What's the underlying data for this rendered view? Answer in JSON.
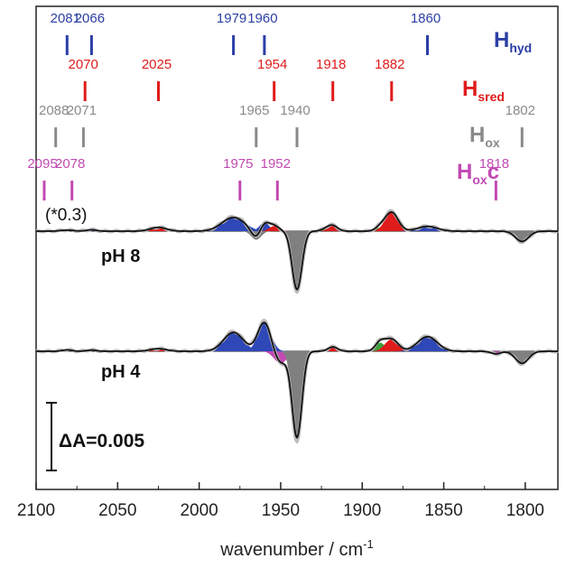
{
  "chart_data": {
    "type": "line",
    "xlabel_main": "wavenumber / cm",
    "xlabel_sup": "-1",
    "xlim": [
      2100,
      1780
    ],
    "xticks": [
      2100,
      2050,
      2000,
      1950,
      1900,
      1850,
      1800
    ],
    "state_labels": [
      {
        "main": "H",
        "sub": "hyd",
        "suffix": "",
        "color": "#2b3ea6",
        "peaks": [
          2081,
          2066,
          1979,
          1960,
          1860
        ]
      },
      {
        "main": "H",
        "sub": "sred",
        "suffix": "",
        "color": "#e01b1b",
        "peaks": [
          2070,
          2025,
          1954,
          1918,
          1882
        ]
      },
      {
        "main": "H",
        "sub": "ox",
        "suffix": "",
        "color": "#8a8a8a",
        "peaks": [
          2088,
          2071,
          1965,
          1940,
          1802
        ]
      },
      {
        "main": "H",
        "sub": "ox",
        "suffix": "c",
        "color": "#c24ab3",
        "peaks": [
          2095,
          2078,
          1975,
          1952,
          1818
        ]
      }
    ],
    "panels": [
      {
        "name": "pH 8",
        "scale_note": "(*0.3)",
        "bands": [
          {
            "pos": 2081,
            "amp": 0.06,
            "w": 4,
            "state": 0
          },
          {
            "pos": 2066,
            "amp": 0.08,
            "w": 3,
            "state": 0
          },
          {
            "pos": 2025,
            "amp": 0.22,
            "w": 5,
            "state": 1
          },
          {
            "pos": 1979,
            "amp": 0.8,
            "w": 7,
            "state": 0
          },
          {
            "pos": 1965,
            "amp": -0.5,
            "w": 3,
            "state": 2
          },
          {
            "pos": 1960,
            "amp": 0.5,
            "w": 3,
            "state": 0
          },
          {
            "pos": 1954,
            "amp": 0.3,
            "w": 3,
            "state": 1
          },
          {
            "pos": 1940,
            "amp": -3.4,
            "w": 3,
            "state": 2
          },
          {
            "pos": 1922,
            "amp": 0.12,
            "w": 3,
            "state": 3
          },
          {
            "pos": 1918,
            "amp": 0.3,
            "w": 3,
            "state": 1
          },
          {
            "pos": 1889,
            "amp": 0.2,
            "w": 3,
            "state": 3
          },
          {
            "pos": 1882,
            "amp": 1.1,
            "w": 4,
            "state": 1
          },
          {
            "pos": 1860,
            "amp": 0.28,
            "w": 6,
            "state": 0
          },
          {
            "pos": 1802,
            "amp": -0.6,
            "w": 4,
            "state": 2
          }
        ]
      },
      {
        "name": "pH 4",
        "scale_note": "",
        "bands": [
          {
            "pos": 2081,
            "amp": 0.08,
            "w": 3,
            "state": 0
          },
          {
            "pos": 2066,
            "amp": 0.07,
            "w": 3,
            "state": 0
          },
          {
            "pos": 2025,
            "amp": 0.15,
            "w": 5,
            "state": 1
          },
          {
            "pos": 1979,
            "amp": 1.1,
            "w": 6,
            "state": 0
          },
          {
            "pos": 1960,
            "amp": 1.7,
            "w": 4,
            "state": 0
          },
          {
            "pos": 1950,
            "amp": -0.7,
            "w": 4,
            "state": 3
          },
          {
            "pos": 1940,
            "amp": -5.0,
            "w": 3,
            "state": 2
          },
          {
            "pos": 1918,
            "amp": 0.25,
            "w": 3,
            "state": 1
          },
          {
            "pos": 1889,
            "amp": 0.5,
            "w": 3,
            "state": 3
          },
          {
            "pos": 1882,
            "amp": 0.7,
            "w": 4,
            "state": 1
          },
          {
            "pos": 1860,
            "amp": 0.85,
            "w": 6,
            "state": 0
          },
          {
            "pos": 1818,
            "amp": -0.15,
            "w": 3,
            "state": 3
          },
          {
            "pos": 1802,
            "amp": -0.7,
            "w": 4,
            "state": 2
          }
        ]
      }
    ],
    "scale_bar_label": "ΔA=0.005"
  }
}
